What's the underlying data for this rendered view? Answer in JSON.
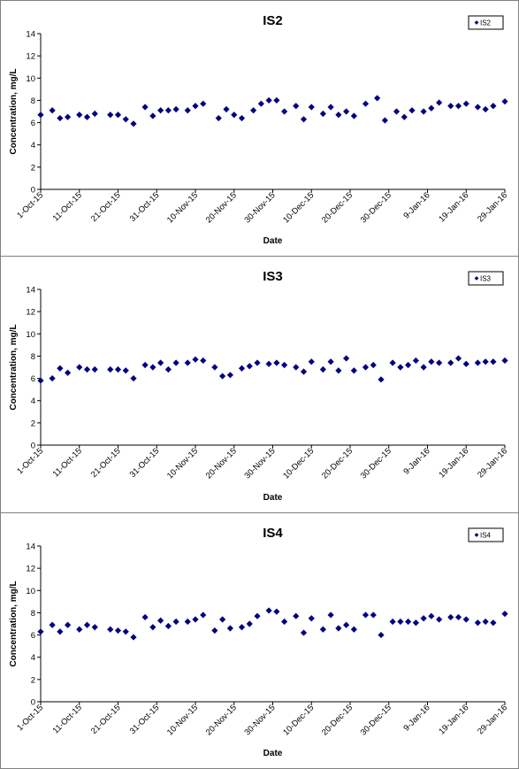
{
  "chart_data": [
    {
      "type": "scatter",
      "title": "IS2",
      "xlabel": "Date",
      "ylabel": "Concentration, mg/L",
      "ylim": [
        0,
        14
      ],
      "yticks": [
        0,
        2,
        4,
        6,
        8,
        10,
        12,
        14
      ],
      "xlim": [
        "1-Oct-15",
        "29-Jan-16"
      ],
      "xticks": [
        "1-Oct-15",
        "11-Oct-15",
        "21-Oct-15",
        "31-Oct-15",
        "10-Nov-15",
        "20-Nov-15",
        "30-Nov-15",
        "10-Dec-15",
        "20-Dec-15",
        "30-Dec-15",
        "9-Jan-16",
        "19-Jan-16",
        "29-Jan-16"
      ],
      "grid": false,
      "legend": "top-right",
      "color": "#000080",
      "series": [
        {
          "name": "IS2",
          "x": [
            "1-Oct-15",
            "4-Oct-15",
            "6-Oct-15",
            "8-Oct-15",
            "11-Oct-15",
            "13-Oct-15",
            "15-Oct-15",
            "19-Oct-15",
            "21-Oct-15",
            "23-Oct-15",
            "25-Oct-15",
            "28-Oct-15",
            "30-Oct-15",
            "1-Nov-15",
            "3-Nov-15",
            "5-Nov-15",
            "8-Nov-15",
            "10-Nov-15",
            "12-Nov-15",
            "16-Nov-15",
            "18-Nov-15",
            "20-Nov-15",
            "22-Nov-15",
            "25-Nov-15",
            "27-Nov-15",
            "29-Nov-15",
            "1-Dec-15",
            "3-Dec-15",
            "6-Dec-15",
            "8-Dec-15",
            "10-Dec-15",
            "13-Dec-15",
            "15-Dec-15",
            "17-Dec-15",
            "19-Dec-15",
            "21-Dec-15",
            "24-Dec-15",
            "27-Dec-15",
            "29-Dec-15",
            "1-Jan-16",
            "3-Jan-16",
            "5-Jan-16",
            "8-Jan-16",
            "10-Jan-16",
            "12-Jan-16",
            "15-Jan-16",
            "17-Jan-16",
            "19-Jan-16",
            "22-Jan-16",
            "24-Jan-16",
            "26-Jan-16",
            "29-Jan-16"
          ],
          "values": [
            6.7,
            7.1,
            6.4,
            6.5,
            6.7,
            6.5,
            6.8,
            6.7,
            6.7,
            6.3,
            5.9,
            7.4,
            6.6,
            7.1,
            7.1,
            7.2,
            7.1,
            7.5,
            7.7,
            6.4,
            7.2,
            6.7,
            6.4,
            7.1,
            7.7,
            8.0,
            8.0,
            7.0,
            7.5,
            6.3,
            7.4,
            6.8,
            7.4,
            6.7,
            7.0,
            6.6,
            7.7,
            8.2,
            6.2,
            7.0,
            6.5,
            7.1,
            7.0,
            7.3,
            7.8,
            7.5,
            7.5,
            7.7,
            7.4,
            7.2,
            7.5,
            7.9
          ]
        }
      ]
    },
    {
      "type": "scatter",
      "title": "IS3",
      "xlabel": "Date",
      "ylabel": "Concentration, mg/L",
      "ylim": [
        0,
        14
      ],
      "yticks": [
        0,
        2,
        4,
        6,
        8,
        10,
        12,
        14
      ],
      "xlim": [
        "1-Oct-15",
        "29-Jan-16"
      ],
      "xticks": [
        "1-Oct-15",
        "11-Oct-15",
        "21-Oct-15",
        "31-Oct-15",
        "10-Nov-15",
        "20-Nov-15",
        "30-Nov-15",
        "10-Dec-15",
        "20-Dec-15",
        "30-Dec-15",
        "9-Jan-16",
        "19-Jan-16",
        "29-Jan-16"
      ],
      "grid": false,
      "legend": "top-right",
      "color": "#000080",
      "series": [
        {
          "name": "IS3",
          "x": [
            "1-Oct-15",
            "4-Oct-15",
            "6-Oct-15",
            "8-Oct-15",
            "11-Oct-15",
            "13-Oct-15",
            "15-Oct-15",
            "19-Oct-15",
            "21-Oct-15",
            "23-Oct-15",
            "25-Oct-15",
            "28-Oct-15",
            "30-Oct-15",
            "1-Nov-15",
            "3-Nov-15",
            "5-Nov-15",
            "8-Nov-15",
            "10-Nov-15",
            "12-Nov-15",
            "15-Nov-15",
            "17-Nov-15",
            "19-Nov-15",
            "22-Nov-15",
            "24-Nov-15",
            "26-Nov-15",
            "29-Nov-15",
            "1-Dec-15",
            "3-Dec-15",
            "6-Dec-15",
            "8-Dec-15",
            "10-Dec-15",
            "13-Dec-15",
            "15-Dec-15",
            "17-Dec-15",
            "19-Dec-15",
            "21-Dec-15",
            "24-Dec-15",
            "26-Dec-15",
            "28-Dec-15",
            "31-Dec-15",
            "2-Jan-16",
            "4-Jan-16",
            "6-Jan-16",
            "8-Jan-16",
            "10-Jan-16",
            "12-Jan-16",
            "15-Jan-16",
            "17-Jan-16",
            "19-Jan-16",
            "22-Jan-16",
            "24-Jan-16",
            "26-Jan-16",
            "29-Jan-16"
          ],
          "values": [
            5.8,
            6.0,
            6.9,
            6.5,
            7.0,
            6.8,
            6.8,
            6.8,
            6.8,
            6.7,
            6.0,
            7.2,
            7.0,
            7.4,
            6.8,
            7.4,
            7.4,
            7.7,
            7.6,
            7.0,
            6.2,
            6.3,
            6.9,
            7.1,
            7.4,
            7.3,
            7.4,
            7.2,
            7.0,
            6.6,
            7.5,
            6.8,
            7.5,
            6.7,
            7.8,
            6.7,
            7.0,
            7.2,
            5.9,
            7.4,
            7.0,
            7.2,
            7.6,
            7.0,
            7.5,
            7.4,
            7.4,
            7.8,
            7.3,
            7.4,
            7.5,
            7.5,
            7.6
          ]
        }
      ]
    },
    {
      "type": "scatter",
      "title": "IS4",
      "xlabel": "Date",
      "ylabel": "Concentration, mg/L",
      "ylim": [
        0,
        14
      ],
      "yticks": [
        0,
        2,
        4,
        6,
        8,
        10,
        12,
        14
      ],
      "xlim": [
        "1-Oct-15",
        "29-Jan-16"
      ],
      "xticks": [
        "1-Oct-15",
        "11-Oct-15",
        "21-Oct-15",
        "31-Oct-15",
        "10-Nov-15",
        "20-Nov-15",
        "30-Nov-15",
        "10-Dec-15",
        "20-Dec-15",
        "30-Dec-15",
        "9-Jan-16",
        "19-Jan-16",
        "29-Jan-16"
      ],
      "grid": false,
      "legend": "top-right",
      "color": "#000080",
      "series": [
        {
          "name": "IS4",
          "x": [
            "1-Oct-15",
            "4-Oct-15",
            "6-Oct-15",
            "8-Oct-15",
            "11-Oct-15",
            "13-Oct-15",
            "15-Oct-15",
            "19-Oct-15",
            "21-Oct-15",
            "23-Oct-15",
            "25-Oct-15",
            "28-Oct-15",
            "30-Oct-15",
            "1-Nov-15",
            "3-Nov-15",
            "5-Nov-15",
            "8-Nov-15",
            "10-Nov-15",
            "12-Nov-15",
            "15-Nov-15",
            "17-Nov-15",
            "19-Nov-15",
            "22-Nov-15",
            "24-Nov-15",
            "26-Nov-15",
            "29-Nov-15",
            "1-Dec-15",
            "3-Dec-15",
            "6-Dec-15",
            "8-Dec-15",
            "10-Dec-15",
            "13-Dec-15",
            "15-Dec-15",
            "17-Dec-15",
            "19-Dec-15",
            "21-Dec-15",
            "24-Dec-15",
            "26-Dec-15",
            "28-Dec-15",
            "31-Dec-15",
            "2-Jan-16",
            "4-Jan-16",
            "6-Jan-16",
            "8-Jan-16",
            "10-Jan-16",
            "12-Jan-16",
            "15-Jan-16",
            "17-Jan-16",
            "19-Jan-16",
            "22-Jan-16",
            "24-Jan-16",
            "26-Jan-16",
            "29-Jan-16"
          ],
          "values": [
            6.3,
            6.9,
            6.3,
            6.9,
            6.5,
            6.9,
            6.7,
            6.5,
            6.4,
            6.3,
            5.8,
            7.6,
            6.7,
            7.3,
            6.8,
            7.2,
            7.2,
            7.4,
            7.8,
            6.4,
            7.4,
            6.6,
            6.7,
            7.0,
            7.7,
            8.2,
            8.1,
            7.2,
            7.7,
            6.2,
            7.5,
            6.5,
            7.8,
            6.6,
            6.9,
            6.5,
            7.8,
            7.8,
            6.0,
            7.2,
            7.2,
            7.2,
            7.1,
            7.5,
            7.7,
            7.4,
            7.6,
            7.6,
            7.4,
            7.1,
            7.2,
            7.1,
            7.9
          ]
        }
      ]
    }
  ]
}
